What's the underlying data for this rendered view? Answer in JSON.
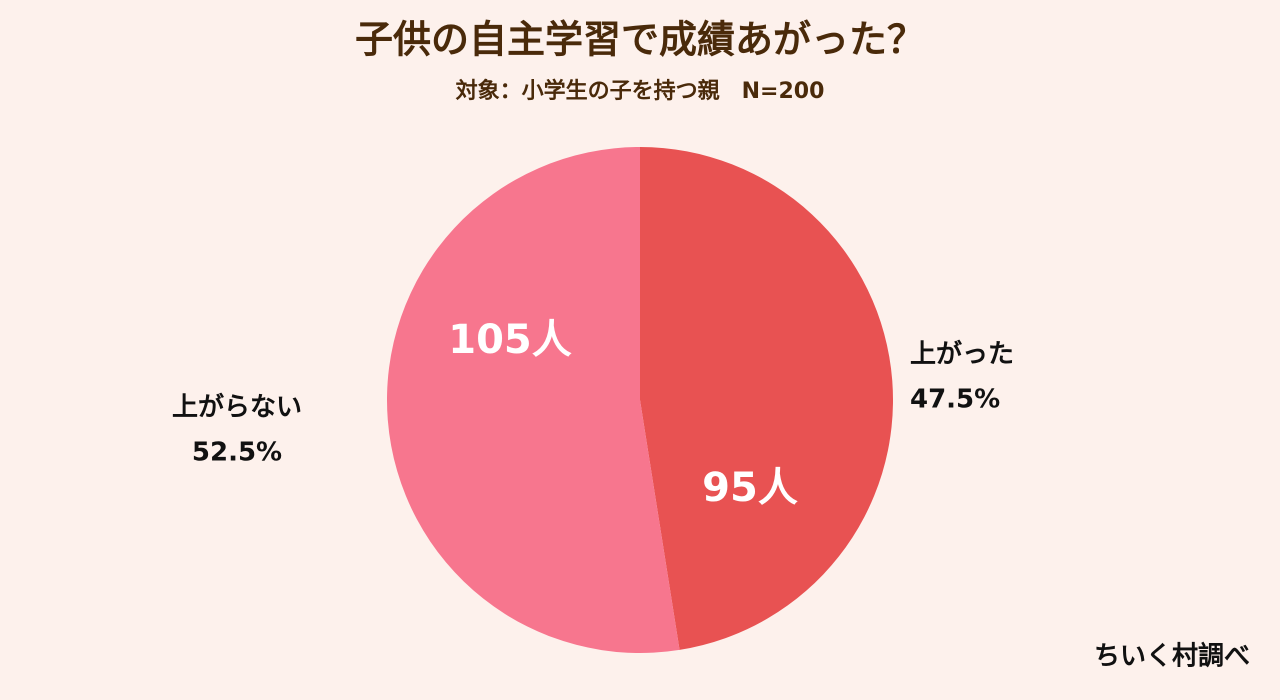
{
  "chart_data": {
    "type": "pie",
    "title": "子供の自主学習で成績あがった？",
    "subtitle": "対象：小学生の子を持つ親　N=200",
    "categories": [
      "上がった",
      "上がらない"
    ],
    "values": [
      47.5,
      52.5
    ],
    "value_labels": [
      "47.5%",
      "52.5%"
    ],
    "counts": [
      95,
      105
    ],
    "count_labels": [
      "95人",
      "105人"
    ],
    "colors": [
      "#e85252",
      "#f7768e"
    ],
    "source": "ちいく村調べ"
  }
}
